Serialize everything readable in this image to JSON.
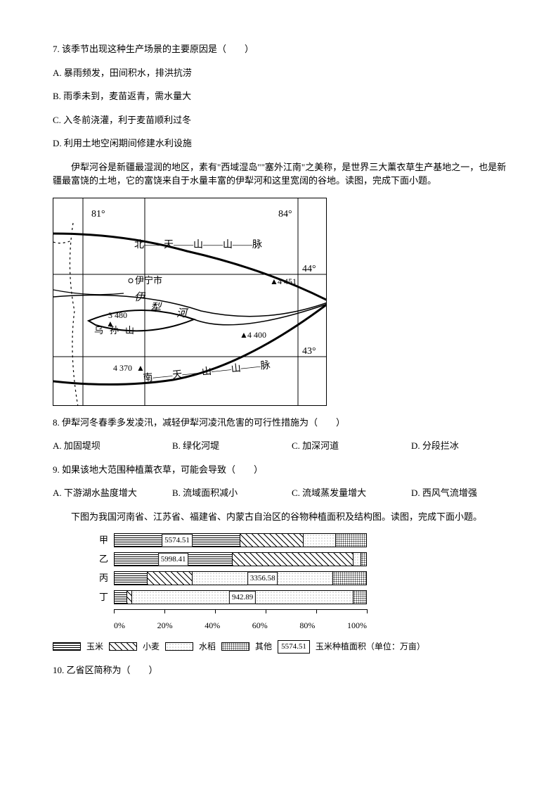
{
  "q7": {
    "stem": "7. 该季节出现这种生产场景的主要原因是（　　）",
    "A": "A. 暴雨频发，田间积水，排洪抗涝",
    "B": "B. 雨季未到，麦苗返青，需水量大",
    "C": "C. 入冬前浇灌，利于麦苗顺利过冬",
    "D": "D. 利用土地空闲期间修建水利设施"
  },
  "passage1a": "伊犁河谷是新疆最湿润的地区，素有\"西域湿岛\"\"塞外江南\"之美称，是世界三大薰衣草生产基地之一，也是新疆最富饶的土地，它的富饶来自于水量丰富的伊犁河和这里宽阔的谷地。读图，完成下面小题。",
  "map": {
    "lon_left": "81°",
    "lon_right": "84°",
    "lat_top": "44°",
    "lat_bot": "43°",
    "city": "伊宁市",
    "river_name": "伊",
    "river_name2": "犁",
    "river_name3": "河",
    "n_mtn": "北——天——山——山——脉",
    "s_mtn": "南——天——山——山——脉",
    "wusun1": "乌",
    "wusun2": "孙",
    "wusun3": "山",
    "peak1": "3 480",
    "peak2": "4 451",
    "peak3": "4 400",
    "peak4": "4 370"
  },
  "q8": {
    "stem": "8. 伊犁河冬春季多发凌汛，减轻伊犁河凌汛危害的可行性措施为（　　）",
    "A": "A. 加固堤坝",
    "B": "B. 绿化河堤",
    "C": "C. 加深河道",
    "D": "D. 分段拦冰"
  },
  "q9": {
    "stem": "9. 如果该地大范围种植薰衣草，可能会导致（　　）",
    "A": "A. 下游湖水盐度增大",
    "B": "B. 流域面积减小",
    "C": "C. 流域蒸发量增大",
    "D": "D. 西风气流增强"
  },
  "passage2": "下图为我国河南省、江苏省、福建省、内蒙古自治区的谷物种植面积及结构图。读图，完成下面小题。",
  "chart": {
    "rows": [
      {
        "label": "甲",
        "corn": 50,
        "wheat": 25,
        "rice": 13,
        "other": 12,
        "value": "5574.51",
        "value_seg": 0
      },
      {
        "label": "乙",
        "corn": 47,
        "wheat": 48,
        "rice": 3,
        "other": 2,
        "value": "5998.41",
        "value_seg": 0
      },
      {
        "label": "丙",
        "corn": 13,
        "wheat": 18,
        "rice": 56,
        "other": 13,
        "value": "3356.58",
        "value_seg": 2
      },
      {
        "label": "丁",
        "corn": 5,
        "wheat": 2,
        "rice": 88,
        "other": 5,
        "value": "942.89",
        "value_seg": 2
      }
    ],
    "ticks": [
      "0%",
      "20%",
      "40%",
      "60%",
      "80%",
      "100%"
    ]
  },
  "legend": {
    "corn": "玉米",
    "wheat": "小麦",
    "rice": "水稻",
    "other": "其他",
    "sample": "5574.51",
    "sample_label": "玉米种植面积（单位：万亩）"
  },
  "q10": {
    "stem": "10. 乙省区简称为（　　）"
  }
}
